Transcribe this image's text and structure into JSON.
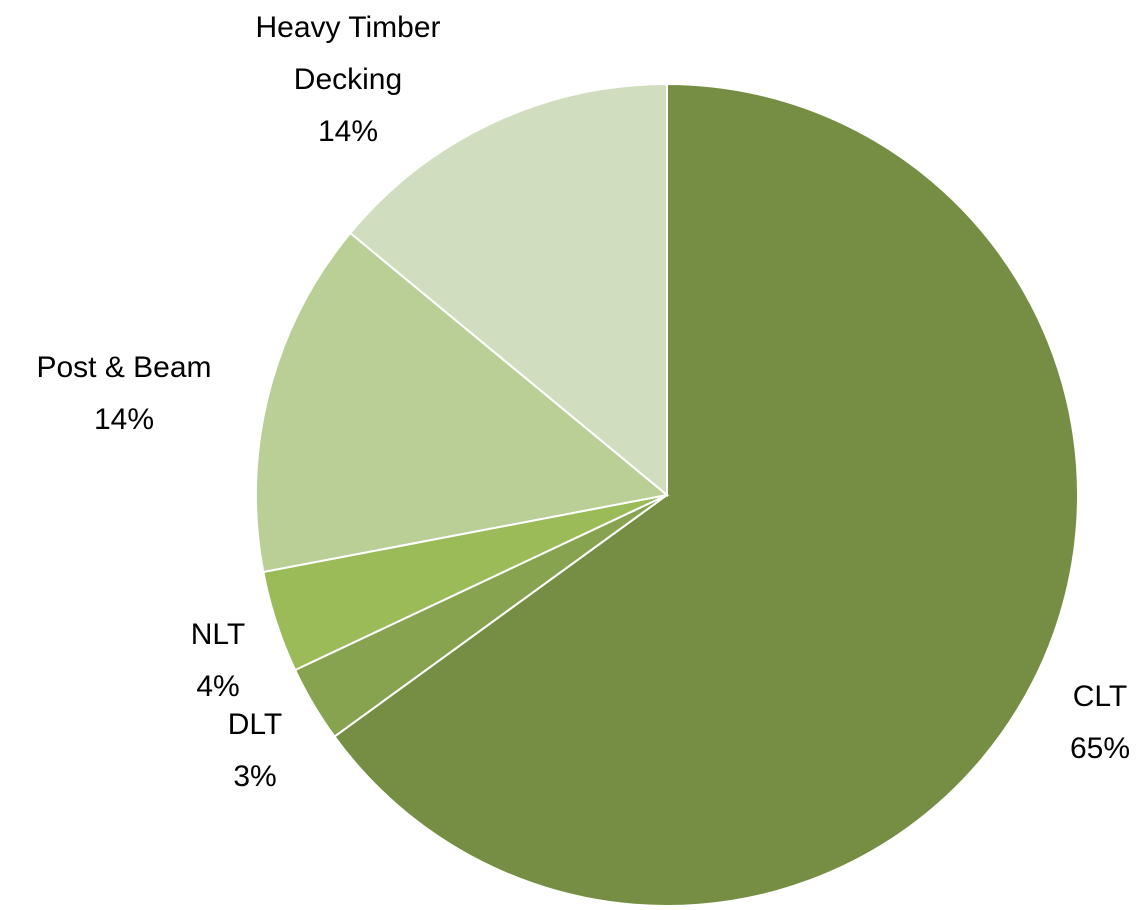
{
  "chart_data": {
    "type": "pie",
    "categories": [
      "CLT",
      "DLT",
      "NLT",
      "Post & Beam",
      "Heavy Timber Decking"
    ],
    "values": [
      65,
      3,
      4,
      14,
      14
    ],
    "value_labels": [
      "65%",
      "3%",
      "4%",
      "14%",
      "14%"
    ],
    "colors": [
      "#758e43",
      "#87a34f",
      "#9bbb59",
      "#bacf96",
      "#d1ddbf"
    ]
  }
}
